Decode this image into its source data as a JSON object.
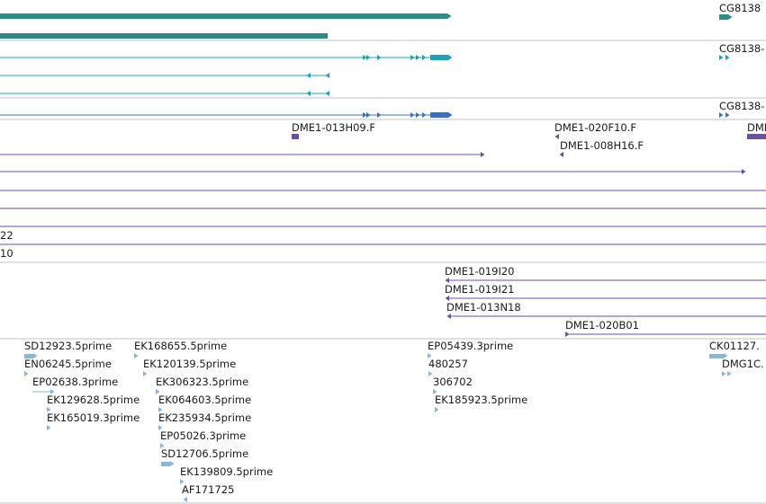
{
  "colors": {
    "gene": "#2e8b88",
    "transcript": "#1aa3b8",
    "cds": "#3a6fc4",
    "bac_end": "#6b4fa0",
    "est": "#88b7da",
    "separator": "#c0c0c0"
  },
  "tracks": {
    "gene_labels": [
      "CG8138"
    ],
    "transcript_labels": [
      "CG8138-",
      "CG8138-"
    ],
    "bac_labels": [
      "DME1-013H09.F",
      "DME1-020F10.F",
      "DME1-008H16.F",
      "DMI",
      "22",
      "10",
      "DME1-019I20",
      "DME1-019I21",
      "DME1-013N18",
      "DME1-020B01"
    ],
    "est_labels": [
      "SD12923.5prime",
      "EN06245.5prime",
      "EP02638.3prime",
      "EK129628.5prime",
      "EK165019.3prime",
      "EK168655.5prime",
      "EK120139.5prime",
      "EK306323.5prime",
      "EK064603.5prime",
      "EK235934.5prime",
      "EP05026.3prime",
      "SD12706.5prime",
      "EK139809.5prime",
      "AF171725",
      "EP05439.3prime",
      "480257",
      "306702",
      "EK185923.5prime",
      "CK01127.",
      "DMG1C."
    ]
  }
}
